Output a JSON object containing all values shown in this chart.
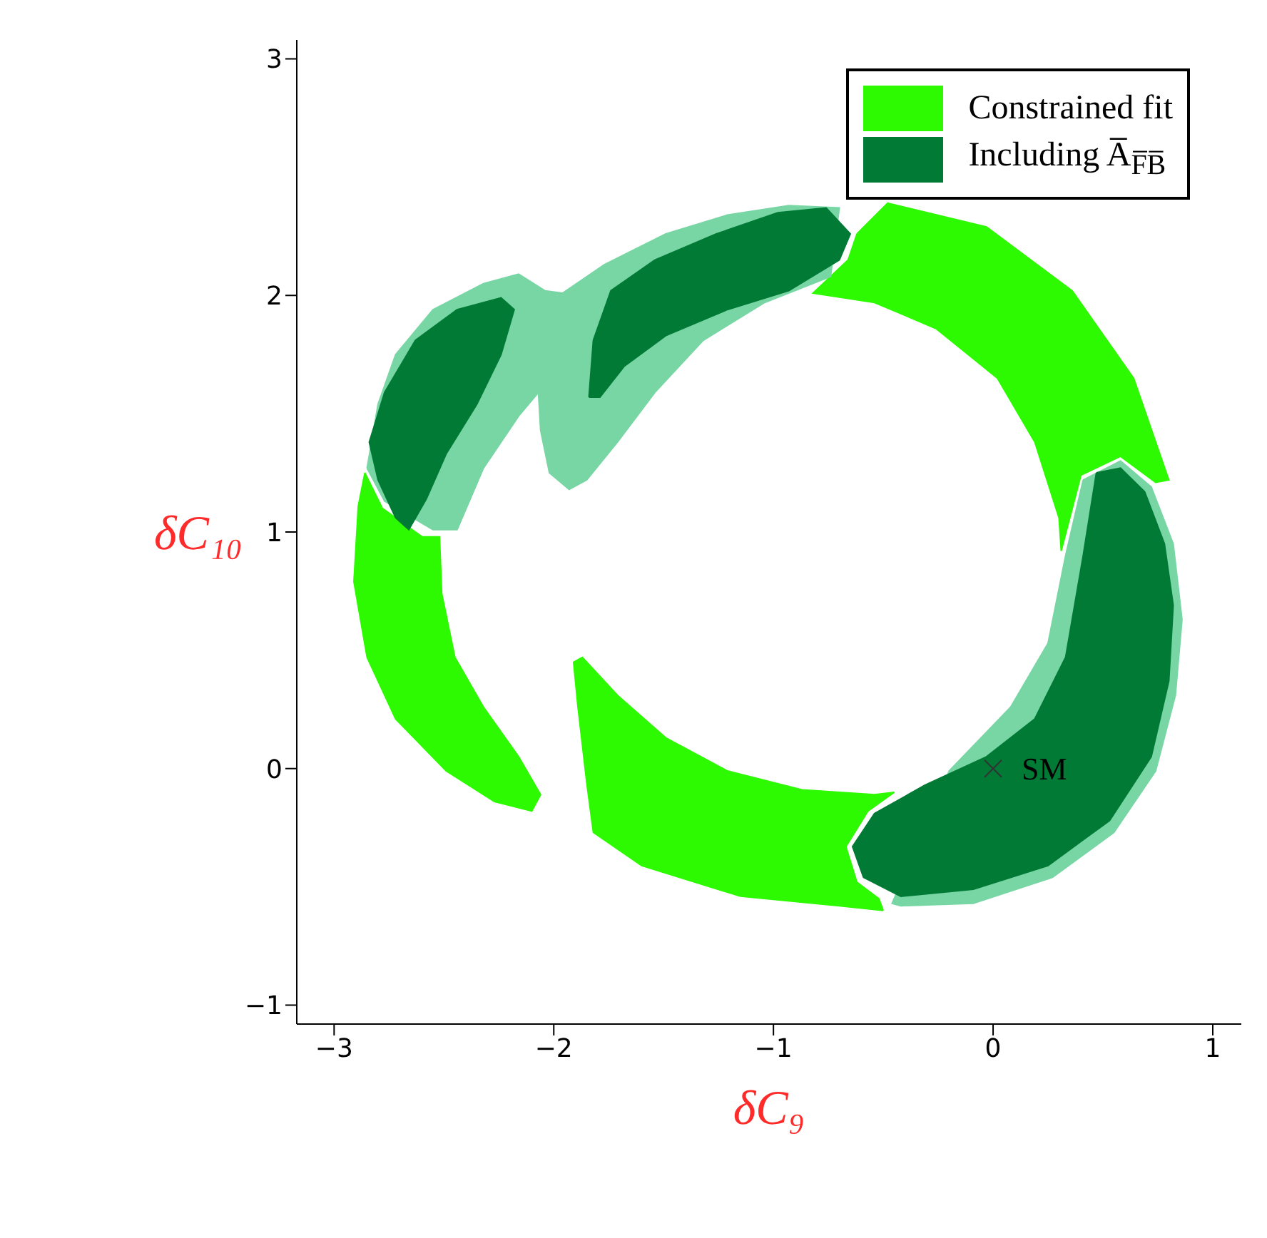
{
  "chart_data": {
    "type": "area",
    "xlabel": "δC₉",
    "ylabel": "δC₁₀",
    "xlim": [
      -3.17,
      1.13
    ],
    "ylim": [
      -1.08,
      3.08
    ],
    "xticks": [
      -3,
      -2,
      -1,
      0,
      1
    ],
    "yticks": [
      -1,
      0,
      1,
      2,
      3
    ],
    "legend": "top right",
    "grid": false,
    "series": [
      {
        "name": "Constrained fit",
        "color": "#2dfa00",
        "x": [
          -0.62,
          -0.48,
          -0.03,
          0.36,
          0.64,
          0.8,
          0.74,
          0.58,
          0.4,
          0.31,
          0.3,
          0.19,
          0.02,
          -0.26,
          -0.54,
          -0.82,
          -0.66
        ],
        "values": [
          2.26,
          2.39,
          2.29,
          2.02,
          1.65,
          1.22,
          1.21,
          1.32,
          1.24,
          0.92,
          1.06,
          1.38,
          1.65,
          1.86,
          1.97,
          2.01,
          2.15
        ]
      },
      {
        "color": "#2dfa00",
        "x": [
          -0.5,
          -0.7,
          -1.15,
          -1.6,
          -1.82,
          -1.85,
          -1.89,
          -1.91,
          -1.87,
          -1.71,
          -1.49,
          -1.21,
          -0.87,
          -0.54,
          -0.45,
          -0.57,
          -0.67,
          -0.62,
          -0.52
        ],
        "values": [
          -0.6,
          -0.58,
          -0.54,
          -0.41,
          -0.27,
          -0.06,
          0.26,
          0.45,
          0.47,
          0.31,
          0.13,
          -0.01,
          -0.09,
          -0.11,
          -0.1,
          -0.18,
          -0.33,
          -0.48,
          -0.55
        ]
      },
      {
        "color": "#2dfa00",
        "x": [
          -2.86,
          -2.89,
          -2.91,
          -2.85,
          -2.72,
          -2.49,
          -2.27,
          -2.1,
          -2.06,
          -2.16,
          -2.32,
          -2.45,
          -2.51,
          -2.52,
          -2.6,
          -2.78
        ],
        "values": [
          1.25,
          1.11,
          0.79,
          0.47,
          0.21,
          -0.01,
          -0.14,
          -0.18,
          -0.11,
          0.05,
          0.26,
          0.47,
          0.74,
          0.98,
          0.98,
          1.1
        ]
      },
      {
        "color": "#78d6a4",
        "x": [
          -2.85,
          -2.8,
          -2.72,
          -2.55,
          -2.32,
          -2.16,
          -2.04,
          -1.96,
          -1.77,
          -1.49,
          -1.21,
          -0.93,
          -0.7,
          -0.74,
          -1.04,
          -1.32,
          -1.54,
          -1.71,
          -1.85,
          -1.93,
          -2.02,
          -2.06,
          -2.07,
          -2.16,
          -2.32,
          -2.44,
          -2.55,
          -2.77
        ],
        "values": [
          1.27,
          1.54,
          1.75,
          1.94,
          2.05,
          2.09,
          2.02,
          2.01,
          2.13,
          2.26,
          2.34,
          2.38,
          2.37,
          2.08,
          1.97,
          1.81,
          1.59,
          1.38,
          1.22,
          1.18,
          1.25,
          1.43,
          1.59,
          1.49,
          1.27,
          1.01,
          1.01,
          1.13
        ]
      },
      {
        "color": "#78d6a4",
        "x": [
          0.41,
          0.58,
          0.72,
          0.82,
          0.86,
          0.83,
          0.74,
          0.55,
          0.27,
          -0.09,
          -0.42,
          -0.46,
          -0.2,
          0.08,
          0.25,
          0.33
        ],
        "values": [
          1.22,
          1.3,
          1.19,
          0.95,
          0.63,
          0.31,
          -0.01,
          -0.27,
          -0.46,
          -0.57,
          -0.58,
          -0.57,
          -0.01,
          0.26,
          0.53,
          0.9
        ]
      },
      {
        "name": "Including A̅$_{F̅B̅}$",
        "color": "#007a35",
        "x": [
          -2.72,
          -2.8,
          -2.84,
          -2.77,
          -2.63,
          -2.44,
          -2.24,
          -2.18,
          -2.24,
          -2.35,
          -2.49,
          -2.58,
          -2.66
        ],
        "values": [
          1.06,
          1.22,
          1.38,
          1.59,
          1.81,
          1.94,
          1.99,
          1.94,
          1.75,
          1.54,
          1.33,
          1.14,
          1.01
        ]
      },
      {
        "color": "#007a35",
        "x": [
          -1.84,
          -1.82,
          -1.74,
          -1.54,
          -1.26,
          -0.98,
          -0.76,
          -0.65,
          -0.7,
          -0.93,
          -1.21,
          -1.49,
          -1.68,
          -1.79
        ],
        "values": [
          1.57,
          1.81,
          2.02,
          2.15,
          2.26,
          2.35,
          2.37,
          2.26,
          2.15,
          2.02,
          1.94,
          1.83,
          1.7,
          1.57
        ]
      },
      {
        "color": "#007a35",
        "x": [
          0.47,
          0.58,
          0.69,
          0.78,
          0.82,
          0.8,
          0.72,
          0.53,
          0.25,
          -0.09,
          -0.42,
          -0.59,
          -0.64,
          -0.54,
          -0.31,
          -0.03,
          0.19,
          0.33,
          0.41
        ],
        "values": [
          1.25,
          1.27,
          1.17,
          0.95,
          0.69,
          0.37,
          0.05,
          -0.22,
          -0.41,
          -0.51,
          -0.54,
          -0.46,
          -0.33,
          -0.19,
          -0.07,
          0.05,
          0.21,
          0.47,
          0.9
        ]
      },
      {
        "type": "scatter",
        "marker": "cross",
        "color": "#333333",
        "x": [
          0
        ],
        "values": [
          0
        ]
      }
    ],
    "annotations": [
      {
        "text": "SM",
        "x": 0,
        "y": 0
      }
    ]
  }
}
